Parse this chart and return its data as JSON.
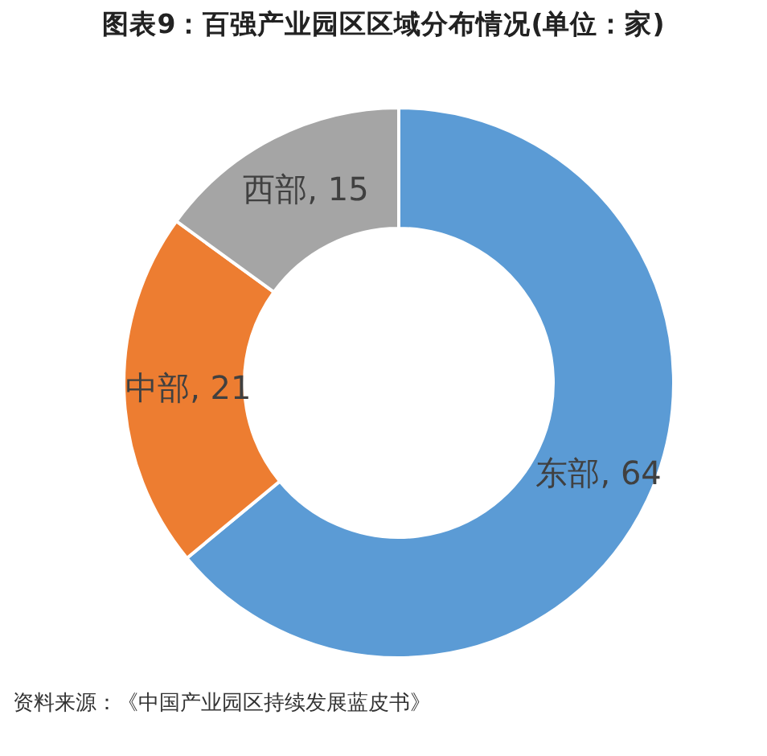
{
  "chart_data": {
    "type": "donut",
    "title": "图表9：百强产业园区区域分布情况(单位：家)",
    "categories": [
      "东部",
      "中部",
      "西部"
    ],
    "values": [
      64,
      21,
      15
    ],
    "colors": [
      "#5b9bd5",
      "#ed7d31",
      "#a5a5a5"
    ],
    "value_labels": [
      ", 64",
      ", 21",
      ", 15"
    ],
    "annotations": [
      "资料来源：《中国产业园区持续发展蓝皮书》"
    ]
  }
}
